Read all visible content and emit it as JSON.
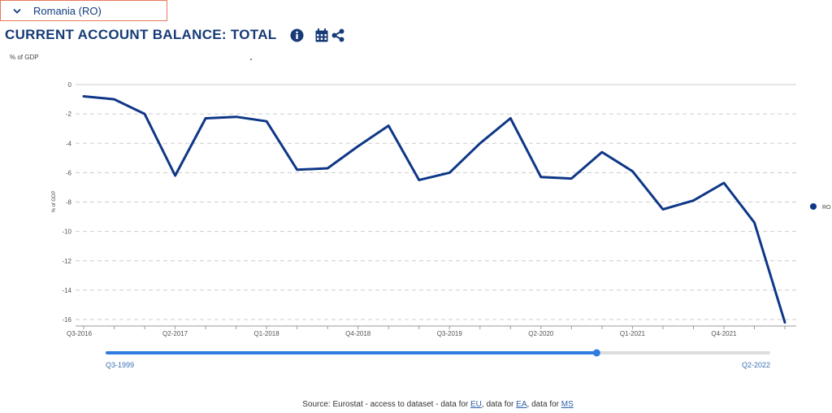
{
  "country_select": {
    "label": "Romania (RO)",
    "icon": "chevron-down-icon"
  },
  "header": {
    "title": "CURRENT ACCOUNT BALANCE: TOTAL",
    "icons": [
      "info-icon",
      "calendar-icon",
      "share-icon"
    ]
  },
  "unit_label": "% of GDP",
  "slider": {
    "start_label": "Q3-1999",
    "end_label": "Q2-2022",
    "position": 0.74
  },
  "source": {
    "prefix": "Source: Eurostat - ",
    "access_link": "access to dataset",
    "sep1": " - data for ",
    "eu_link": "EU",
    "sep2": ", data for ",
    "ea_link": "EA",
    "sep3": ", data for ",
    "ms_link": "MS"
  },
  "colors": {
    "series": "#0e3787",
    "title": "#163b76",
    "slider": "#2f7de1",
    "grid": "#cccccc"
  },
  "chart_data": {
    "type": "line",
    "ylabel": "% of GDP",
    "ylim": [
      -16.5,
      0
    ],
    "yticks": [
      0,
      -2,
      -4,
      -6,
      -8,
      -10,
      -12,
      -14,
      -16
    ],
    "grid": true,
    "legend": "right",
    "x_tick_labels": [
      "Q3-2016",
      "Q2-2017",
      "Q1-2018",
      "Q4-2018",
      "Q3-2019",
      "Q2-2020",
      "Q1-2021",
      "Q4-2021"
    ],
    "x_tick_index": [
      0,
      3,
      6,
      9,
      12,
      15,
      18,
      21
    ],
    "x": [
      "Q3-2016",
      "Q4-2016",
      "Q1-2017",
      "Q2-2017",
      "Q3-2017",
      "Q4-2017",
      "Q1-2018",
      "Q2-2018",
      "Q3-2018",
      "Q4-2018",
      "Q1-2019",
      "Q2-2019",
      "Q3-2019",
      "Q4-2019",
      "Q1-2020",
      "Q2-2020",
      "Q3-2020",
      "Q4-2020",
      "Q1-2021",
      "Q2-2021",
      "Q3-2021",
      "Q4-2021",
      "Q1-2022",
      "Q2-2022"
    ],
    "series": [
      {
        "name": "RO",
        "values": [
          -0.8,
          -1.0,
          -2.0,
          -6.2,
          -2.3,
          -2.2,
          -2.5,
          -5.8,
          -5.7,
          -4.2,
          -2.8,
          -6.5,
          -6.0,
          -4.0,
          -2.3,
          -6.3,
          -6.4,
          -4.6,
          -5.9,
          -8.5,
          -7.9,
          -6.7,
          -9.4,
          -16.2
        ]
      }
    ]
  }
}
